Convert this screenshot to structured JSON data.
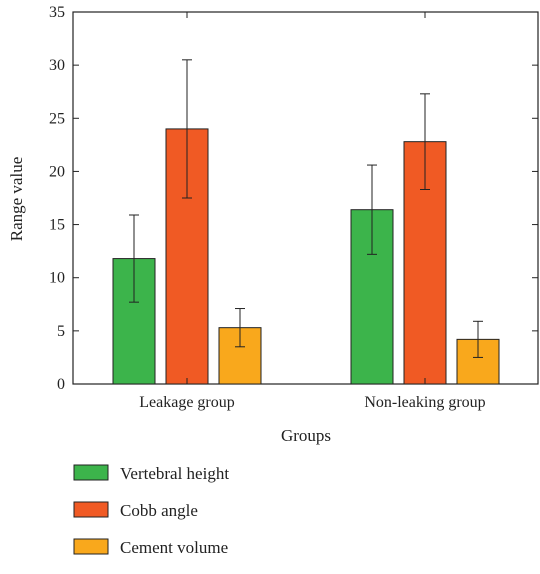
{
  "chart_data": {
    "type": "bar",
    "xlabel": "Groups",
    "ylabel": "Range value",
    "ylim": [
      0,
      35
    ],
    "yticks": [
      0,
      5,
      10,
      15,
      20,
      25,
      30,
      35
    ],
    "categories": [
      "Leakage group",
      "Non-leaking group"
    ],
    "series": [
      {
        "name": "Vertebral height",
        "color": "#3cb44b",
        "values": [
          11.8,
          16.4
        ],
        "error": [
          4.1,
          4.2
        ]
      },
      {
        "name": "Cobb angle",
        "color": "#f05a24",
        "values": [
          24.0,
          22.8
        ],
        "error": [
          6.5,
          4.5
        ]
      },
      {
        "name": "Cement volume",
        "color": "#f9a81c",
        "values": [
          5.3,
          4.2
        ],
        "error": [
          1.8,
          1.7
        ]
      }
    ],
    "grid": false,
    "legend_position": "bottom-left"
  }
}
